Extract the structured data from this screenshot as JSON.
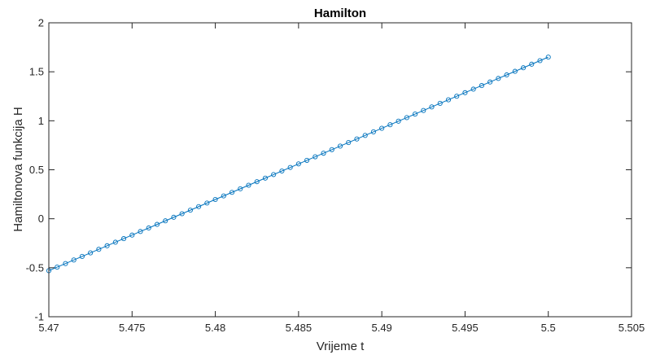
{
  "chart_data": {
    "type": "line",
    "title": "Hamilton",
    "xlabel": "Vrijeme t",
    "ylabel": "Hamiltonova funkcija H",
    "xlim": [
      5.47,
      5.505
    ],
    "ylim": [
      -1,
      2
    ],
    "xticks": [
      "5.47",
      "5.475",
      "5.48",
      "5.485",
      "5.49",
      "5.495",
      "5.5",
      "5.505"
    ],
    "yticks": [
      "-1",
      "-0.5",
      "0",
      "0.5",
      "1",
      "1.5",
      "2"
    ],
    "grid": false,
    "marker": "circle",
    "series": [
      {
        "color": "#0072BD",
        "x_start": 5.47,
        "x_end": 5.5,
        "num_points": 61,
        "y_start": -0.53,
        "y_end": 1.65
      }
    ]
  }
}
